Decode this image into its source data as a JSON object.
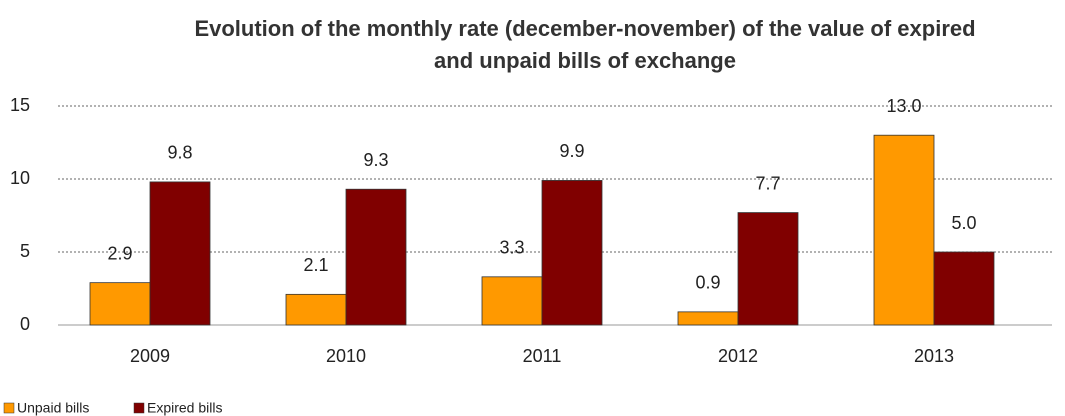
{
  "chart_data": {
    "type": "bar",
    "title": [
      "Evolution of the monthly rate (december-november) of the value of expired",
      "and unpaid bills of exchange"
    ],
    "categories": [
      "2009",
      "2010",
      "2011",
      "2012",
      "2013"
    ],
    "series": [
      {
        "name": "Unpaid bills",
        "color": "#ff9900",
        "values": [
          2.9,
          2.1,
          3.3,
          0.9,
          13.0
        ],
        "value_labels": [
          "2.9",
          "2.1",
          "3.3",
          "0.9",
          "13.0"
        ]
      },
      {
        "name": "Expired bills",
        "color": "#800000",
        "values": [
          9.8,
          9.3,
          9.9,
          7.7,
          5.0
        ],
        "value_labels": [
          "9.8",
          "9.3",
          "9.9",
          "7.7",
          "5.0"
        ]
      }
    ],
    "ylim": [
      0,
      15
    ],
    "yticks": [
      0,
      5,
      10,
      15
    ],
    "grid": true,
    "legend": "bottom-left"
  }
}
